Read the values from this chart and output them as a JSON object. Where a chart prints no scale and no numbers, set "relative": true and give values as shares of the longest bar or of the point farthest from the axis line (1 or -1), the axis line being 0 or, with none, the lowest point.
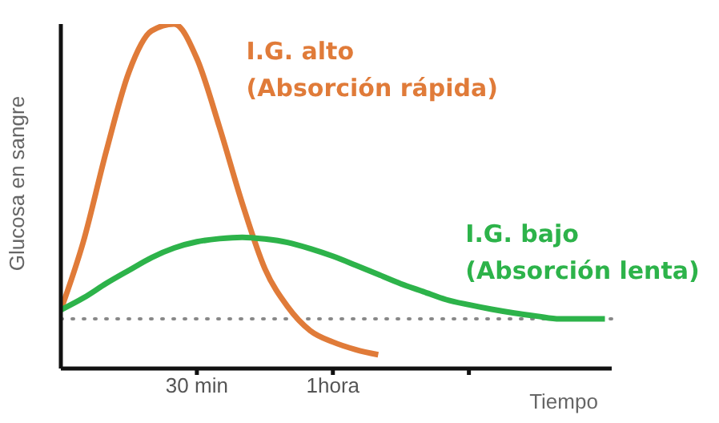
{
  "chart_data": {
    "type": "line",
    "relative": true,
    "xlabel": "Tiempo",
    "ylabel": "Glucosa en sangre",
    "categories": [
      null,
      null,
      null,
      null,
      null,
      null,
      "30 min",
      null,
      null,
      null,
      null,
      null,
      "1hora",
      null,
      null,
      null,
      null,
      null,
      null,
      null,
      null,
      null,
      null,
      null,
      null
    ],
    "legend": false,
    "grid": false,
    "marker": "none",
    "line_style": "solid",
    "ref_lines": [
      {
        "axis": "y",
        "value": 0.144,
        "label": null,
        "color": "#888888",
        "line_style": "dotted"
      }
    ],
    "series": [
      {
        "name": "I.G. alto (Absorción rápida)",
        "color": "#e07b39",
        "values": [
          0.17,
          0.37,
          0.63,
          0.86,
          0.98,
          1,
          0.9,
          0.7,
          0.48,
          0.29,
          0.18,
          0.11,
          0.077,
          0.055,
          0.04,
          null,
          null,
          null,
          null,
          null,
          null,
          null,
          null,
          null,
          null
        ]
      },
      {
        "name": "I.G. bajo (Absorción lenta)",
        "color": "#2db34a",
        "values": [
          0.17,
          0.205,
          0.247,
          0.285,
          0.322,
          0.35,
          0.368,
          0.377,
          0.381,
          0.376,
          0.366,
          0.348,
          0.326,
          0.3,
          0.273,
          0.246,
          0.223,
          0.2,
          0.185,
          0.172,
          0.161,
          0.152,
          0.144,
          0.144,
          0.144
        ]
      }
    ]
  }
}
